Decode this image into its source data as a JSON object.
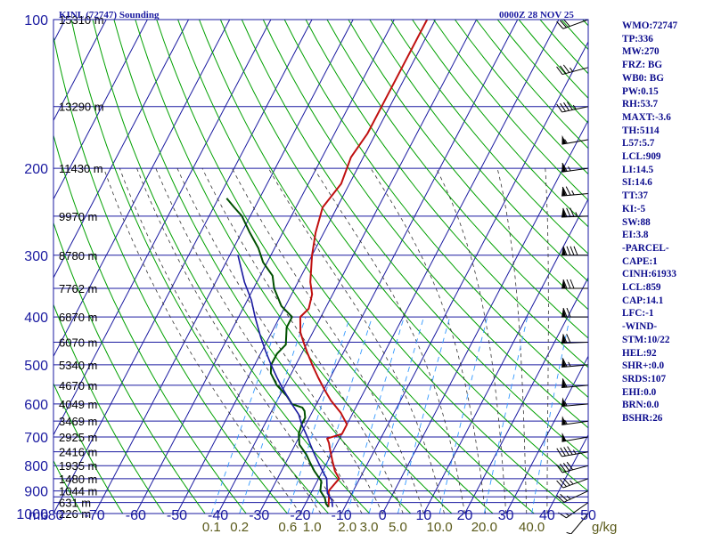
{
  "header": {
    "station": "KINL (72747) Sounding",
    "time": "0000Z 28 NOV 25"
  },
  "indices": [
    "WMO:72747",
    "TP:336",
    "MW:270",
    "FRZ: BG",
    "WB0: BG",
    "PW:0.15",
    "RH:53.7",
    "MAXT:-3.6",
    "TH:5114",
    "L57:5.7",
    "LCL:909",
    "LI:14.5",
    "SI:14.6",
    "TT:37",
    "KI:-5",
    "SW:88",
    "EI:3.8",
    "-PARCEL-",
    "CAPE:1",
    "CINH:61933",
    "LCL:859",
    "CAP:14.1",
    "LFC:-1",
    "-WIND-",
    "STM:10/22",
    "HEL:92",
    "SHR+:0.0",
    "SRDS:107",
    "EHI:0.0",
    "BRN:0.0",
    "BSHR:26"
  ],
  "colors": {
    "frame": "#1a1aa0",
    "isotherm": "#1a1aa0",
    "dry_adiabat": "#00a000",
    "moist_adiabat": "#333333",
    "mixing_ratio": "#3399ff",
    "temperature": "#c01010",
    "dewpoint": "#005000",
    "parcel": "#1a1aa0",
    "barbs": "#000000"
  },
  "chart_data": {
    "type": "line",
    "chart_kind": "skew-T log-P sounding",
    "x_axis": {
      "name_prefix": "mb",
      "ticks": [
        -80,
        -70,
        -60,
        -50,
        -40,
        -30,
        -20,
        -10,
        0,
        10,
        20,
        30,
        40,
        50
      ],
      "tick_labels": [
        "-80",
        "-70",
        "-60",
        "-50",
        "-40",
        "-30",
        "-20",
        "-10",
        "0",
        "10",
        "20",
        "30",
        "40",
        "50"
      ],
      "range": [
        -80,
        50
      ],
      "unit": "°C"
    },
    "y_axis": {
      "scale": "log",
      "range": [
        1000,
        100
      ],
      "labeled_ticks": [
        100,
        200,
        300,
        400,
        500,
        600,
        700,
        800,
        900,
        1000
      ],
      "gridlines": [
        100,
        150,
        200,
        250,
        300,
        350,
        400,
        450,
        500,
        550,
        600,
        650,
        700,
        750,
        800,
        850,
        900,
        925,
        950,
        1000
      ],
      "unit": "mb"
    },
    "height_labels": [
      {
        "p": 100,
        "text": "15310 m"
      },
      {
        "p": 150,
        "text": "13290 m"
      },
      {
        "p": 200,
        "text": "11430 m"
      },
      {
        "p": 250,
        "text": "9970 m"
      },
      {
        "p": 300,
        "text": "8780 m"
      },
      {
        "p": 350,
        "text": "7762 m"
      },
      {
        "p": 400,
        "text": "6870 m"
      },
      {
        "p": 450,
        "text": "6070 m"
      },
      {
        "p": 500,
        "text": "5340 m"
      },
      {
        "p": 550,
        "text": "4670 m"
      },
      {
        "p": 600,
        "text": "4049 m"
      },
      {
        "p": 650,
        "text": "3469 m"
      },
      {
        "p": 700,
        "text": "2925 m"
      },
      {
        "p": 750,
        "text": "2416 m"
      },
      {
        "p": 800,
        "text": "1935 m"
      },
      {
        "p": 850,
        "text": "1480 m"
      },
      {
        "p": 900,
        "text": "1044 m"
      },
      {
        "p": 950,
        "text": "631 m"
      },
      {
        "p": 1000,
        "text": "226 m"
      }
    ],
    "mixing_ratio_labels": [
      "0.1",
      "0.2",
      "0.6",
      "1.0",
      "2.0",
      "3.0",
      "5.0",
      "10.0",
      "20.0",
      "40.0"
    ],
    "mixing_ratio_unit": "g/kg",
    "series": [
      {
        "key": "temperature",
        "points": [
          [
            970,
            -14
          ],
          [
            930,
            -15
          ],
          [
            900,
            -16
          ],
          [
            850,
            -15
          ],
          [
            820,
            -17
          ],
          [
            780,
            -19
          ],
          [
            740,
            -21
          ],
          [
            720,
            -22
          ],
          [
            705,
            -23
          ],
          [
            690,
            -20
          ],
          [
            660,
            -20
          ],
          [
            625,
            -23
          ],
          [
            590,
            -27
          ],
          [
            560,
            -30
          ],
          [
            530,
            -33
          ],
          [
            500,
            -36
          ],
          [
            470,
            -39
          ],
          [
            450,
            -41
          ],
          [
            430,
            -43
          ],
          [
            400,
            -45
          ],
          [
            385,
            -44
          ],
          [
            360,
            -45
          ],
          [
            340,
            -47
          ],
          [
            300,
            -50
          ],
          [
            270,
            -52
          ],
          [
            240,
            -53.5
          ],
          [
            215,
            -52
          ],
          [
            190,
            -53
          ],
          [
            170,
            -52
          ],
          [
            150,
            -52
          ],
          [
            125,
            -52
          ],
          [
            100,
            -52
          ]
        ]
      },
      {
        "key": "dewpoint",
        "points": [
          [
            970,
            -14
          ],
          [
            955,
            -15
          ],
          [
            930,
            -16
          ],
          [
            900,
            -18
          ],
          [
            860,
            -19
          ],
          [
            820,
            -22
          ],
          [
            790,
            -24
          ],
          [
            760,
            -26
          ],
          [
            725,
            -29
          ],
          [
            690,
            -30.5
          ],
          [
            660,
            -31
          ],
          [
            640,
            -31
          ],
          [
            620,
            -32
          ],
          [
            610,
            -33
          ],
          [
            600,
            -36
          ],
          [
            580,
            -38
          ],
          [
            550,
            -42
          ],
          [
            520,
            -45
          ],
          [
            500,
            -46
          ],
          [
            475,
            -46
          ],
          [
            455,
            -45
          ],
          [
            420,
            -47
          ],
          [
            400,
            -47
          ],
          [
            380,
            -51
          ],
          [
            350,
            -55
          ],
          [
            330,
            -57
          ],
          [
            310,
            -61
          ],
          [
            290,
            -64
          ],
          [
            270,
            -68
          ],
          [
            250,
            -72
          ],
          [
            240,
            -75
          ],
          [
            230,
            -78
          ]
        ]
      },
      {
        "key": "parcel",
        "points": [
          [
            970,
            -13
          ],
          [
            940,
            -14
          ],
          [
            910,
            -16
          ],
          [
            880,
            -17
          ],
          [
            850,
            -18
          ],
          [
            820,
            -20
          ],
          [
            790,
            -22
          ],
          [
            760,
            -24
          ],
          [
            730,
            -26
          ],
          [
            700,
            -28
          ],
          [
            660,
            -31
          ],
          [
            630,
            -33
          ],
          [
            600,
            -36
          ],
          [
            560,
            -40
          ],
          [
            530,
            -43
          ],
          [
            500,
            -46
          ],
          [
            470,
            -49
          ],
          [
            440,
            -52
          ],
          [
            400,
            -56
          ],
          [
            370,
            -59
          ],
          [
            340,
            -63
          ],
          [
            300,
            -68
          ]
        ]
      }
    ],
    "wind_barbs": [
      [
        1000,
        220,
        5
      ],
      [
        950,
        235,
        15
      ],
      [
        900,
        245,
        25
      ],
      [
        850,
        250,
        35
      ],
      [
        800,
        255,
        40
      ],
      [
        750,
        260,
        45
      ],
      [
        700,
        260,
        50
      ],
      [
        650,
        262,
        55
      ],
      [
        600,
        265,
        55
      ],
      [
        550,
        265,
        60
      ],
      [
        500,
        265,
        65
      ],
      [
        450,
        268,
        70
      ],
      [
        400,
        270,
        70
      ],
      [
        350,
        270,
        80
      ],
      [
        300,
        270,
        90
      ],
      [
        250,
        268,
        85
      ],
      [
        225,
        265,
        75
      ],
      [
        200,
        262,
        65
      ],
      [
        175,
        260,
        55
      ],
      [
        150,
        258,
        45
      ],
      [
        125,
        255,
        35
      ],
      [
        100,
        250,
        30
      ]
    ]
  }
}
